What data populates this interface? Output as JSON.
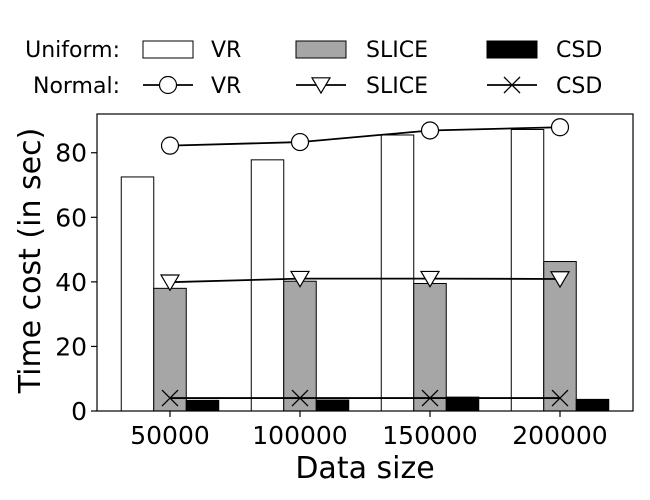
{
  "chart_data": {
    "type": "bar",
    "xlabel": "Data size",
    "ylabel": "Time cost (in sec)",
    "categories": [
      "50000",
      "100000",
      "150000",
      "200000"
    ],
    "ylim": [
      0,
      92
    ],
    "yticks": [
      0,
      20,
      40,
      60,
      80
    ],
    "legend": {
      "placement": "top",
      "row_labels": [
        "Uniform:",
        "Normal:"
      ]
    },
    "bar_series": [
      {
        "group": "Uniform",
        "name": "VR",
        "values": [
          72.5,
          77.8,
          85.5,
          87.2
        ],
        "color": "#ffffff"
      },
      {
        "group": "Uniform",
        "name": "SLICE",
        "values": [
          38.0,
          40.2,
          39.5,
          46.3
        ],
        "color": "#a6a6a6"
      },
      {
        "group": "Uniform",
        "name": "CSD",
        "values": [
          3.3,
          3.4,
          4.3,
          3.6
        ],
        "color": "#000000"
      }
    ],
    "line_series": [
      {
        "group": "Normal",
        "name": "VR",
        "marker": "circle",
        "values": [
          82.2,
          83.3,
          86.9,
          87.9
        ]
      },
      {
        "group": "Normal",
        "name": "SLICE",
        "marker": "triangle-down",
        "values": [
          39.9,
          41.0,
          41.0,
          40.9
        ]
      },
      {
        "group": "Normal",
        "name": "CSD",
        "marker": "x",
        "values": [
          4.0,
          4.0,
          4.0,
          4.0
        ]
      }
    ],
    "grid": false
  }
}
